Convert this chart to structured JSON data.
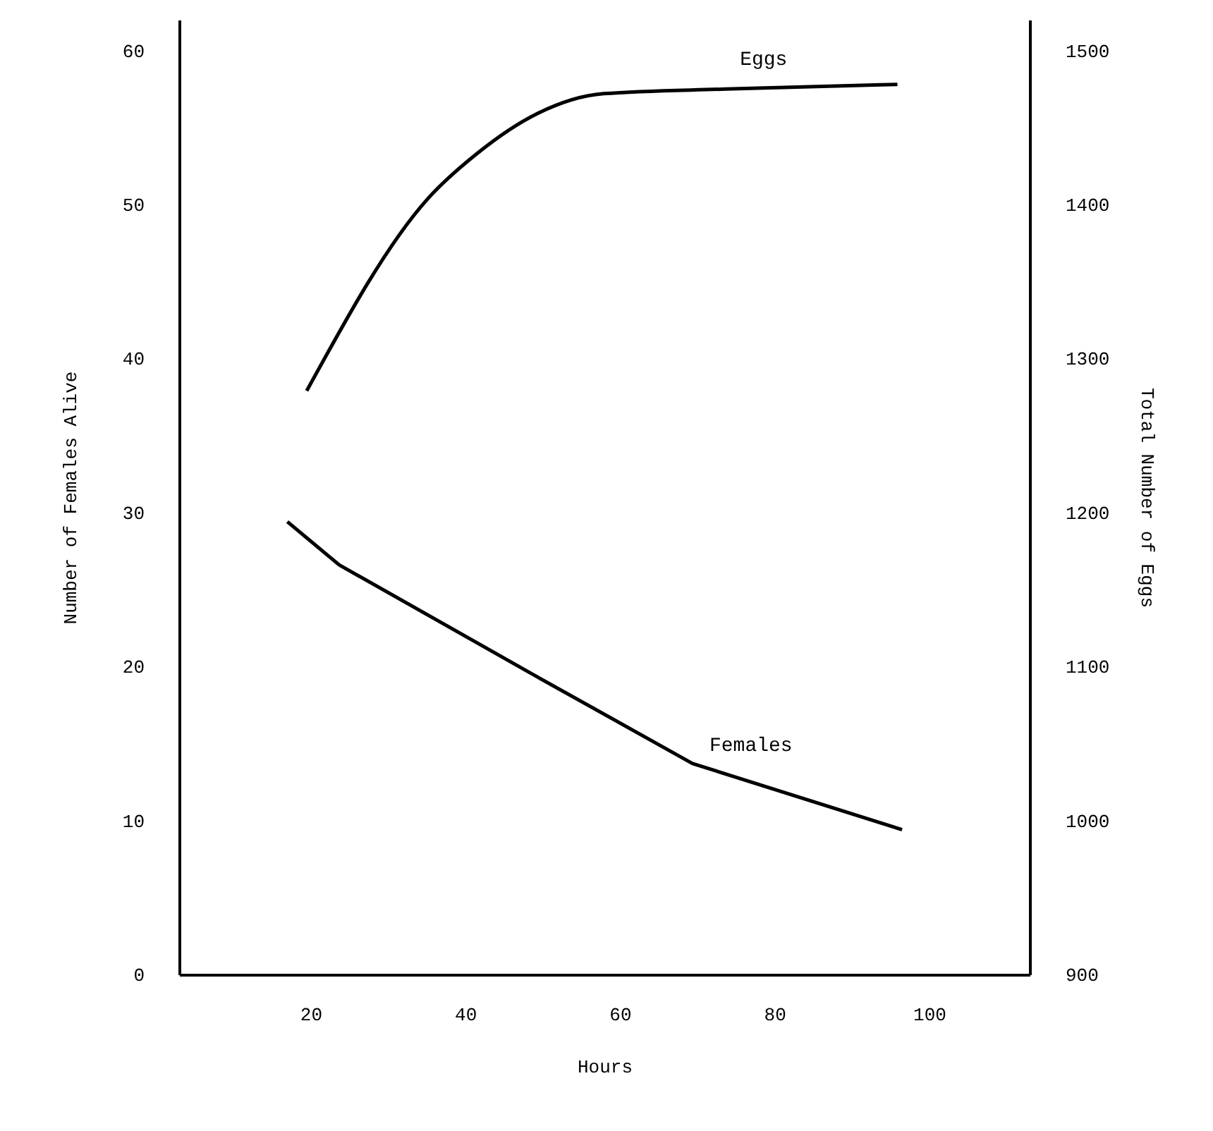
{
  "chart_data": {
    "type": "line",
    "xlabel": "Hours",
    "ylabel": "Number of Females Alive",
    "y2label": "Total Number of Eggs",
    "xlim": [
      3,
      113
    ],
    "xticks": [
      20,
      40,
      60,
      80,
      100
    ],
    "ylim": [
      0,
      62
    ],
    "yticks": [
      0,
      10,
      20,
      30,
      40,
      50,
      60
    ],
    "y2lim": [
      900,
      1520
    ],
    "y2ticks": [
      900,
      1000,
      1100,
      1200,
      1300,
      1400,
      1500
    ],
    "grid": false,
    "line_style": "solid",
    "marker": "none",
    "series": [
      {
        "name": "Eggs",
        "color": "#000000",
        "axis": "y2",
        "x": [
          19.5,
          35.2,
          41.5,
          49.3,
          57.9,
          73.7,
          95.9
        ],
        "values": [
          1279,
          1404,
          1433,
          1459,
          1472,
          1475,
          1478
        ]
      },
      {
        "name": "Females",
        "color": "#000000",
        "x": [
          17.0,
          23.7,
          48.7,
          69.4,
          96.5
        ],
        "values": [
          29.4,
          26.6,
          19.5,
          13.7,
          9.4
        ]
      }
    ]
  }
}
